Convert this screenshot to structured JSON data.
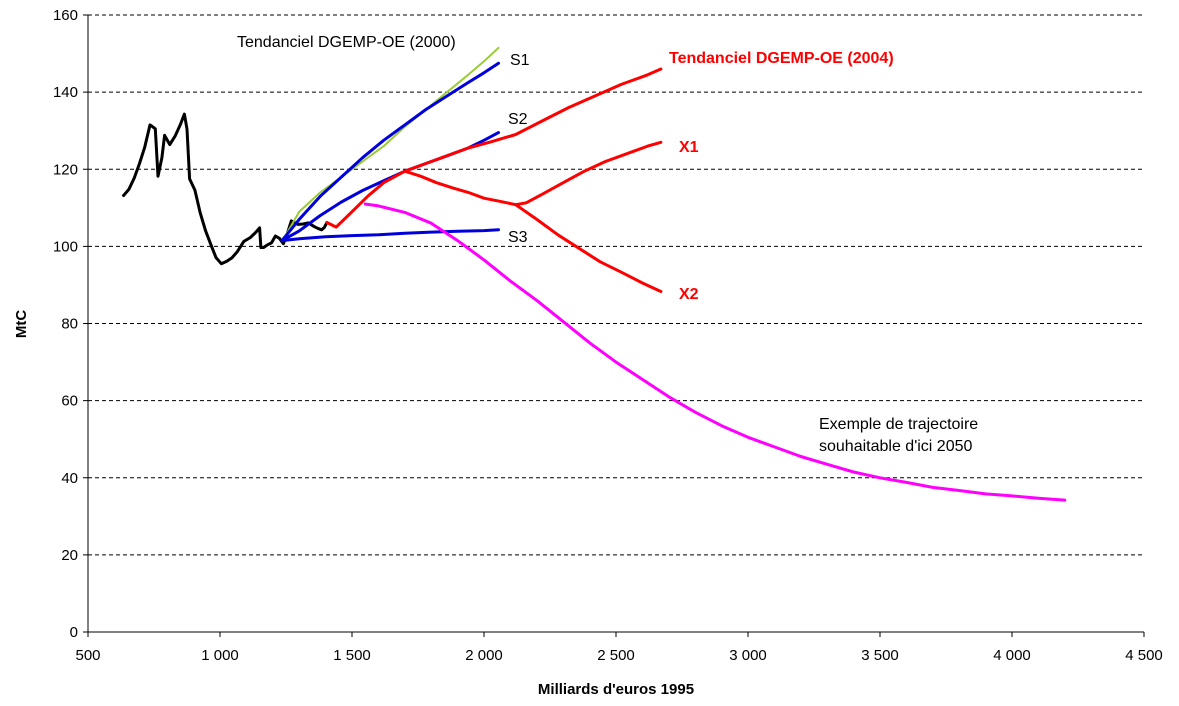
{
  "chart_data": {
    "type": "line",
    "xlabel": "Milliards d'euros 1995",
    "ylabel": "MtC",
    "xlim": [
      500,
      4500
    ],
    "ylim": [
      0,
      160
    ],
    "x_ticks": [
      "500",
      "1 000",
      "1 500",
      "2 000",
      "2 500",
      "3 000",
      "3 500",
      "4 000",
      "4 500"
    ],
    "x_tick_values": [
      500,
      1000,
      1500,
      2000,
      2500,
      3000,
      3500,
      4000,
      4500
    ],
    "y_ticks": [
      "0",
      "20",
      "40",
      "60",
      "80",
      "100",
      "120",
      "140",
      "160"
    ],
    "y_tick_values": [
      0,
      20,
      40,
      60,
      80,
      100,
      120,
      140,
      160
    ],
    "grid": "horizontal dashed",
    "series": [
      {
        "color": "#000000",
        "width": 3,
        "x": [
          635,
          655,
          675,
          695,
          715,
          735,
          745,
          755,
          765,
          780,
          790,
          810,
          830,
          850,
          865,
          875,
          885,
          905,
          925,
          945,
          965,
          985,
          1005,
          1025,
          1045,
          1065,
          1090,
          1115,
          1135,
          1150,
          1155,
          1165,
          1180,
          1195,
          1210,
          1225,
          1240,
          1255,
          1270,
          1295,
          1315,
          1335,
          1355,
          1370,
          1385,
          1395,
          1405
        ],
        "y": [
          113.2,
          114.8,
          117.7,
          121.5,
          125.8,
          131.5,
          131,
          130.5,
          118.2,
          123,
          128.8,
          126.4,
          128.6,
          131.6,
          134.3,
          130.4,
          117.5,
          114.6,
          108.7,
          104.1,
          100.5,
          97.1,
          95.5,
          96.1,
          97,
          98.6,
          101.3,
          102.3,
          103.6,
          104.8,
          99.7,
          99.7,
          100.4,
          100.9,
          102.7,
          102.1,
          100.7,
          103.3,
          106.6,
          105.7,
          105.8,
          106.1,
          105.2,
          104.7,
          104.3,
          104.9,
          106.2
        ]
      },
      {
        "color": "#99cc33",
        "width": 2,
        "x": [
          1240,
          1300,
          1380,
          1460,
          1540,
          1620,
          1700,
          1780,
          1860,
          1940,
          2000,
          2055
        ],
        "y": [
          101.8,
          109,
          114,
          118,
          122,
          126,
          131,
          135.5,
          140,
          144.5,
          148,
          151.5
        ]
      },
      {
        "color": "#0000dd",
        "width": 3,
        "x": [
          1235,
          1300,
          1380,
          1460,
          1540,
          1620,
          1700,
          1780,
          1860,
          1940,
          2000,
          2055
        ],
        "y": [
          101.5,
          107,
          113,
          118,
          123,
          127.5,
          131.5,
          135.5,
          139,
          142.5,
          145,
          147.5
        ]
      },
      {
        "color": "#0000dd",
        "width": 3,
        "x": [
          1235,
          1300,
          1380,
          1460,
          1540,
          1620,
          1700,
          1780,
          1860,
          1940,
          2000,
          2055
        ],
        "y": [
          101.5,
          104,
          108,
          111.5,
          114.5,
          117,
          119.5,
          121.5,
          123.5,
          125.5,
          127.5,
          129.5
        ]
      },
      {
        "color": "#0000dd",
        "width": 3,
        "x": [
          1235,
          1300,
          1400,
          1500,
          1600,
          1700,
          1800,
          1900,
          2000,
          2055
        ],
        "y": [
          101.5,
          102,
          102.5,
          102.8,
          103,
          103.4,
          103.7,
          103.9,
          104.1,
          104.3
        ]
      },
      {
        "color": "#ff0000",
        "width": 3,
        "x": [
          1405,
          1440,
          1500,
          1560,
          1620,
          1700,
          1780,
          1860,
          1940,
          2020,
          2120,
          2220,
          2320,
          2420,
          2520,
          2620,
          2670
        ],
        "y": [
          106.2,
          105,
          109,
          113,
          116.5,
          119.5,
          121.5,
          123.5,
          125.5,
          127,
          129,
          132.5,
          136,
          139,
          142,
          144.5,
          146
        ]
      },
      {
        "color": "#ff0000",
        "width": 3,
        "x": [
          1700,
          1760,
          1820,
          1880,
          1940,
          2000,
          2060,
          2120,
          2160,
          2220,
          2300,
          2380,
          2460,
          2540,
          2620,
          2670
        ],
        "y": [
          119.5,
          118.2,
          116.5,
          115.2,
          114,
          112.5,
          111.7,
          110.8,
          111.3,
          113.5,
          116.5,
          119.5,
          122,
          124,
          126,
          127
        ]
      },
      {
        "color": "#ff0000",
        "width": 3,
        "x": [
          2120,
          2200,
          2280,
          2360,
          2440,
          2520,
          2600,
          2670
        ],
        "y": [
          110.8,
          107,
          103,
          99.5,
          96,
          93.3,
          90.5,
          88.3
        ]
      },
      {
        "color": "#ff00ff",
        "width": 3,
        "x": [
          1550,
          1600,
          1700,
          1800,
          1900,
          2000,
          2100,
          2200,
          2300,
          2400,
          2500,
          2600,
          2700,
          2800,
          2900,
          3000,
          3100,
          3200,
          3300,
          3400,
          3500,
          3600,
          3700,
          3800,
          3900,
          4000,
          4100,
          4200
        ],
        "y": [
          111,
          110.5,
          108.8,
          106,
          101.5,
          96.5,
          91,
          86,
          80.5,
          75,
          70,
          65.5,
          61,
          57,
          53.5,
          50.5,
          48,
          45.5,
          43.5,
          41.5,
          40,
          38.8,
          37.5,
          36.7,
          35.8,
          35.3,
          34.7,
          34.2
        ]
      }
    ],
    "annotations": {
      "tendanciel_2000": "Tendanciel DGEMP-OE (2000)",
      "tendanciel_2004": "Tendanciel DGEMP-OE (2004)",
      "s1": "S1",
      "s2": "S2",
      "s3": "S3",
      "x1": "X1",
      "x2": "X2",
      "trajectoire_line1": "Exemple de trajectoire",
      "trajectoire_line2": "souhaitable d'ici 2050"
    }
  }
}
